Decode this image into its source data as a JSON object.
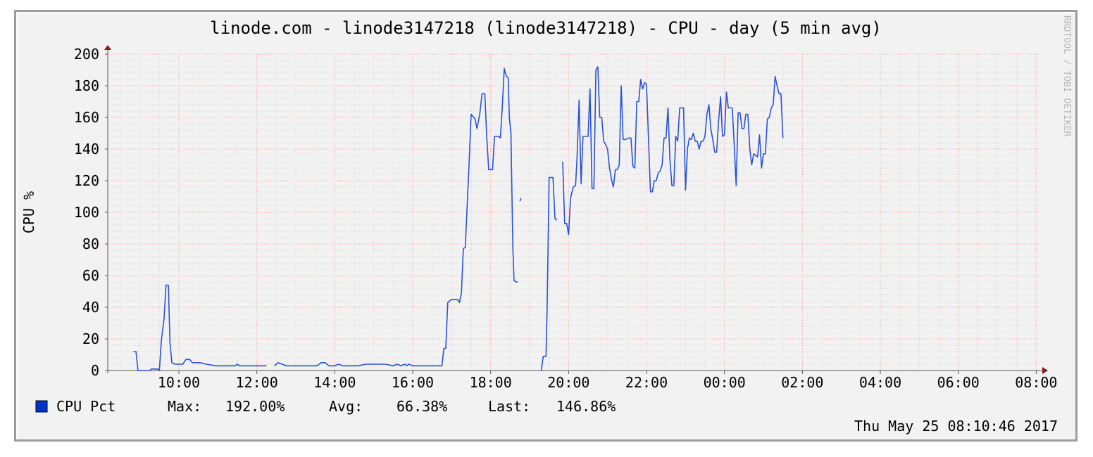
{
  "chart_data": {
    "type": "line",
    "title": "linode.com - linode3147218 (linode3147218) - CPU - day (5 min avg)",
    "ylabel": "CPU %",
    "watermark": "RRDTOOL / TOBI OETIKER",
    "ylim": [
      0,
      200
    ],
    "y_ticks": [
      0,
      20,
      40,
      60,
      80,
      100,
      120,
      140,
      160,
      180,
      200
    ],
    "x_ticks": [
      "10:00",
      "12:00",
      "14:00",
      "16:00",
      "18:00",
      "20:00",
      "22:00",
      "00:00",
      "02:00",
      "04:00",
      "06:00",
      "08:00"
    ],
    "grid": true,
    "colors": {
      "line": "#2a52d8",
      "legend_swatch": "#0033cc",
      "major_grid": "#ff9e9e",
      "minor_grid": "#d4d4d4",
      "axis": "#555555",
      "arrow": "#8a1c1c",
      "watermark": "#b8b8b8"
    },
    "series": [
      {
        "name": "CPU Pct",
        "segments": [
          [
            [
              -1.17,
              12
            ],
            [
              -1.1,
              12
            ],
            [
              -1.05,
              0
            ],
            [
              -0.75,
              0
            ],
            [
              -0.7,
              1
            ],
            [
              -0.55,
              1
            ],
            [
              -0.5,
              0
            ],
            [
              -0.45,
              19
            ],
            [
              -0.38,
              33
            ],
            [
              -0.33,
              54
            ],
            [
              -0.27,
              54
            ],
            [
              -0.23,
              18
            ],
            [
              -0.18,
              5
            ],
            [
              -0.1,
              4
            ],
            [
              0.1,
              4
            ],
            [
              0.18,
              7
            ],
            [
              0.28,
              7
            ],
            [
              0.34,
              5
            ],
            [
              0.55,
              5
            ],
            [
              0.7,
              4
            ],
            [
              0.95,
              3
            ],
            [
              1.3,
              3
            ],
            [
              1.45,
              3
            ],
            [
              1.5,
              4
            ],
            [
              1.55,
              3
            ],
            [
              2.0,
              3
            ],
            [
              2.2,
              3
            ],
            [
              2.25,
              3
            ]
          ],
          [
            [
              2.45,
              3
            ],
            [
              2.55,
              5
            ],
            [
              2.65,
              4
            ],
            [
              2.75,
              3
            ],
            [
              3.2,
              3
            ],
            [
              3.4,
              3
            ],
            [
              3.55,
              3
            ],
            [
              3.65,
              5
            ],
            [
              3.75,
              5
            ],
            [
              3.85,
              3
            ],
            [
              4.0,
              3
            ],
            [
              4.1,
              4
            ],
            [
              4.2,
              3
            ],
            [
              4.6,
              3
            ],
            [
              4.8,
              4
            ],
            [
              5.3,
              4
            ],
            [
              5.5,
              3
            ],
            [
              5.6,
              4
            ],
            [
              5.7,
              3
            ],
            [
              5.8,
              4
            ],
            [
              5.85,
              3
            ],
            [
              5.9,
              4
            ],
            [
              6.0,
              3
            ],
            [
              6.2,
              3
            ],
            [
              6.6,
              3
            ],
            [
              6.75,
              3
            ],
            [
              6.8,
              14
            ],
            [
              6.85,
              14
            ],
            [
              6.9,
              43
            ],
            [
              7.0,
              45
            ],
            [
              7.15,
              45
            ],
            [
              7.2,
              43
            ],
            [
              7.25,
              49
            ],
            [
              7.3,
              77
            ],
            [
              7.35,
              78
            ],
            [
              7.45,
              132
            ],
            [
              7.5,
              162
            ],
            [
              7.6,
              159
            ],
            [
              7.65,
              153
            ],
            [
              7.72,
              162
            ],
            [
              7.78,
              175
            ],
            [
              7.85,
              175
            ],
            [
              7.9,
              148
            ],
            [
              7.95,
              127
            ],
            [
              8.05,
              127
            ],
            [
              8.1,
              148
            ],
            [
              8.2,
              148
            ],
            [
              8.25,
              147
            ],
            [
              8.3,
              167
            ],
            [
              8.35,
              191
            ],
            [
              8.4,
              186
            ],
            [
              8.45,
              185
            ],
            [
              8.48,
              160
            ],
            [
              8.52,
              150
            ],
            [
              8.57,
              78
            ],
            [
              8.6,
              57
            ],
            [
              8.65,
              56
            ],
            [
              8.7,
              56
            ]
          ],
          [
            [
              8.75,
              107
            ],
            [
              8.78,
              109
            ]
          ],
          [
            [
              9.3,
              0
            ],
            [
              9.35,
              9
            ],
            [
              9.42,
              9
            ],
            [
              9.45,
              40
            ],
            [
              9.5,
              122
            ],
            [
              9.6,
              122
            ],
            [
              9.65,
              96
            ],
            [
              9.7,
              95
            ]
          ],
          [
            [
              9.85,
              132
            ],
            [
              9.9,
              93
            ],
            [
              9.95,
              93
            ],
            [
              10.0,
              86
            ],
            [
              10.05,
              109
            ],
            [
              10.12,
              116
            ],
            [
              10.18,
              117
            ],
            [
              10.22,
              136
            ],
            [
              10.27,
              171
            ],
            [
              10.32,
              118
            ],
            [
              10.37,
              148
            ],
            [
              10.45,
              148
            ],
            [
              10.5,
              148
            ],
            [
              10.55,
              178
            ],
            [
              10.6,
              115
            ],
            [
              10.65,
              115
            ],
            [
              10.7,
              190
            ],
            [
              10.75,
              192
            ],
            [
              10.8,
              160
            ],
            [
              10.85,
              160
            ],
            [
              10.9,
              145
            ],
            [
              10.95,
              143
            ],
            [
              11.0,
              140
            ],
            [
              11.05,
              128
            ],
            [
              11.1,
              121
            ],
            [
              11.15,
              116
            ],
            [
              11.2,
              127
            ],
            [
              11.25,
              127
            ],
            [
              11.3,
              130
            ],
            [
              11.35,
              180
            ],
            [
              11.4,
              146
            ],
            [
              11.45,
              146
            ],
            [
              11.55,
              147
            ],
            [
              11.6,
              147
            ],
            [
              11.65,
              129
            ],
            [
              11.7,
              128
            ],
            [
              11.75,
              170
            ],
            [
              11.8,
              170
            ],
            [
              11.85,
              184
            ],
            [
              11.9,
              178
            ],
            [
              11.95,
              182
            ],
            [
              12.0,
              181
            ],
            [
              12.05,
              147
            ],
            [
              12.1,
              113
            ],
            [
              12.15,
              113
            ],
            [
              12.2,
              120
            ],
            [
              12.25,
              120
            ],
            [
              12.3,
              125
            ],
            [
              12.35,
              126
            ],
            [
              12.4,
              130
            ],
            [
              12.45,
              147
            ],
            [
              12.5,
              147
            ],
            [
              12.55,
              166
            ],
            [
              12.6,
              134
            ],
            [
              12.65,
              117
            ],
            [
              12.7,
              117
            ],
            [
              12.75,
              148
            ],
            [
              12.8,
              145
            ],
            [
              12.85,
              166
            ],
            [
              12.9,
              166
            ],
            [
              12.95,
              166
            ],
            [
              13.0,
              114
            ],
            [
              13.05,
              140
            ],
            [
              13.1,
              147
            ],
            [
              13.15,
              146
            ],
            [
              13.2,
              150
            ],
            [
              13.25,
              145
            ],
            [
              13.3,
              145
            ],
            [
              13.35,
              140
            ],
            [
              13.4,
              145
            ],
            [
              13.45,
              145
            ],
            [
              13.5,
              148
            ],
            [
              13.55,
              162
            ],
            [
              13.6,
              168
            ],
            [
              13.65,
              153
            ],
            [
              13.7,
              146
            ],
            [
              13.75,
              138
            ],
            [
              13.8,
              138
            ],
            [
              13.85,
              158
            ],
            [
              13.9,
              173
            ],
            [
              13.95,
              148
            ],
            [
              14.0,
              149
            ],
            [
              14.05,
              176
            ],
            [
              14.1,
              166
            ],
            [
              14.15,
              166
            ],
            [
              14.2,
              166
            ],
            [
              14.25,
              143
            ],
            [
              14.3,
              117
            ],
            [
              14.35,
              163
            ],
            [
              14.4,
              163
            ],
            [
              14.45,
              153
            ],
            [
              14.5,
              153
            ],
            [
              14.55,
              162
            ],
            [
              14.6,
              162
            ],
            [
              14.65,
              140
            ],
            [
              14.7,
              130
            ],
            [
              14.75,
              137
            ],
            [
              14.8,
              136
            ],
            [
              14.85,
              135
            ],
            [
              14.9,
              149
            ],
            [
              14.95,
              128
            ],
            [
              15.0,
              137
            ],
            [
              15.05,
              137
            ],
            [
              15.1,
              159
            ],
            [
              15.15,
              160
            ],
            [
              15.2,
              166
            ],
            [
              15.25,
              168
            ],
            [
              15.3,
              186
            ],
            [
              15.35,
              180
            ],
            [
              15.4,
              175
            ],
            [
              15.45,
              175
            ],
            [
              15.5,
              147
            ]
          ]
        ]
      }
    ]
  },
  "legend": {
    "series_name": "CPU Pct",
    "max_label": "Max:",
    "max_value": "192.00%",
    "avg_label": "Avg:",
    "avg_value": "66.38%",
    "last_label": "Last:",
    "last_value": "146.86%"
  },
  "timestamp": "Thu May 25 08:10:46 2017"
}
